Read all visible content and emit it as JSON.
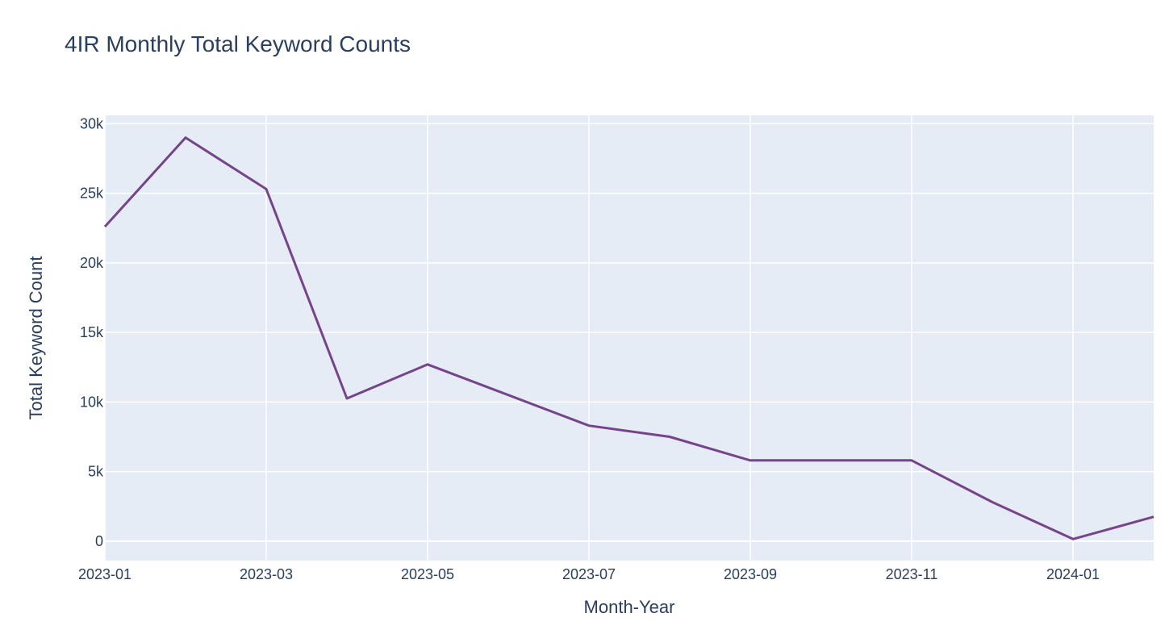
{
  "colors": {
    "plot_bg": "#e5ecf6",
    "grid": "#ffffff",
    "line": "#76448a",
    "text": "#2a3f5f"
  },
  "chart_data": {
    "type": "line",
    "title": "4IR Monthly Total Keyword Counts",
    "xlabel": "Month-Year",
    "ylabel": "Total Keyword Count",
    "grid": true,
    "legend": "none",
    "xlim": [
      "2023-01",
      "2024-02"
    ],
    "ylim": [
      -1400,
      30600
    ],
    "x_ticks": [
      "2023-01",
      "2023-03",
      "2023-05",
      "2023-07",
      "2023-09",
      "2023-11",
      "2024-01"
    ],
    "y_ticks": [
      0,
      5000,
      10000,
      15000,
      20000,
      25000,
      30000
    ],
    "y_tick_labels": [
      "0",
      "5k",
      "10k",
      "15k",
      "20k",
      "25k",
      "30k"
    ],
    "series": [
      {
        "x": [
          "2023-01",
          "2023-02",
          "2023-03",
          "2023-04",
          "2023-05",
          "2023-07",
          "2023-08",
          "2023-09",
          "2023-11",
          "2023-12",
          "2024-01",
          "2024-02"
        ],
        "values": [
          22600,
          29000,
          25300,
          10250,
          12700,
          8300,
          7500,
          5800,
          5800,
          2800,
          150,
          1750
        ]
      }
    ]
  }
}
